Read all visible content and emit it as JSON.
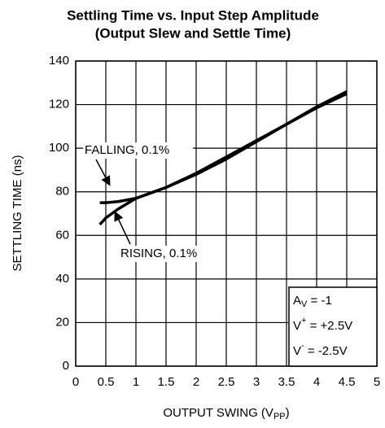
{
  "chart_data": {
    "type": "line",
    "title": [
      "Settling Time vs. Input Step Amplitude",
      "(Output Slew and Settle Time)"
    ],
    "x_label": {
      "main": "OUTPUT SWING (V",
      "sub": "PP",
      "end": ")"
    },
    "y_label": "SETTLING TIME (ns)",
    "series": [
      {
        "name": "FALLING, 0.1%",
        "color": "#000000",
        "x": [
          0.4,
          0.5,
          0.7,
          1,
          1.5,
          2,
          2.5,
          3,
          3.5,
          4,
          4.5
        ],
        "values": [
          75,
          75,
          75.5,
          77,
          82,
          88,
          95,
          103,
          111,
          119,
          126
        ]
      },
      {
        "name": "RISING, 0.1%",
        "color": "#000000",
        "x": [
          0.4,
          0.5,
          0.7,
          1,
          1.5,
          2,
          2.5,
          3,
          3.5,
          4,
          4.5
        ],
        "values": [
          65,
          68,
          72,
          77,
          82,
          88.5,
          96,
          103.5,
          111,
          118.5,
          125
        ]
      }
    ],
    "conditions": [
      {
        "main": "A",
        "sub": "V",
        "rest": " = -1"
      },
      {
        "main": "V",
        "sup": "+",
        "rest": " = +2.5V"
      },
      {
        "main": "V",
        "sup": "-",
        "rest": " = -2.5V"
      }
    ],
    "xlim": [
      0,
      5
    ],
    "xticks": [
      0,
      0.5,
      1,
      1.5,
      2,
      2.5,
      3,
      3.5,
      4,
      4.5,
      5
    ],
    "ylim": [
      0,
      140
    ],
    "yticks": [
      0,
      20,
      40,
      60,
      80,
      100,
      120,
      140
    ],
    "grid": true
  }
}
